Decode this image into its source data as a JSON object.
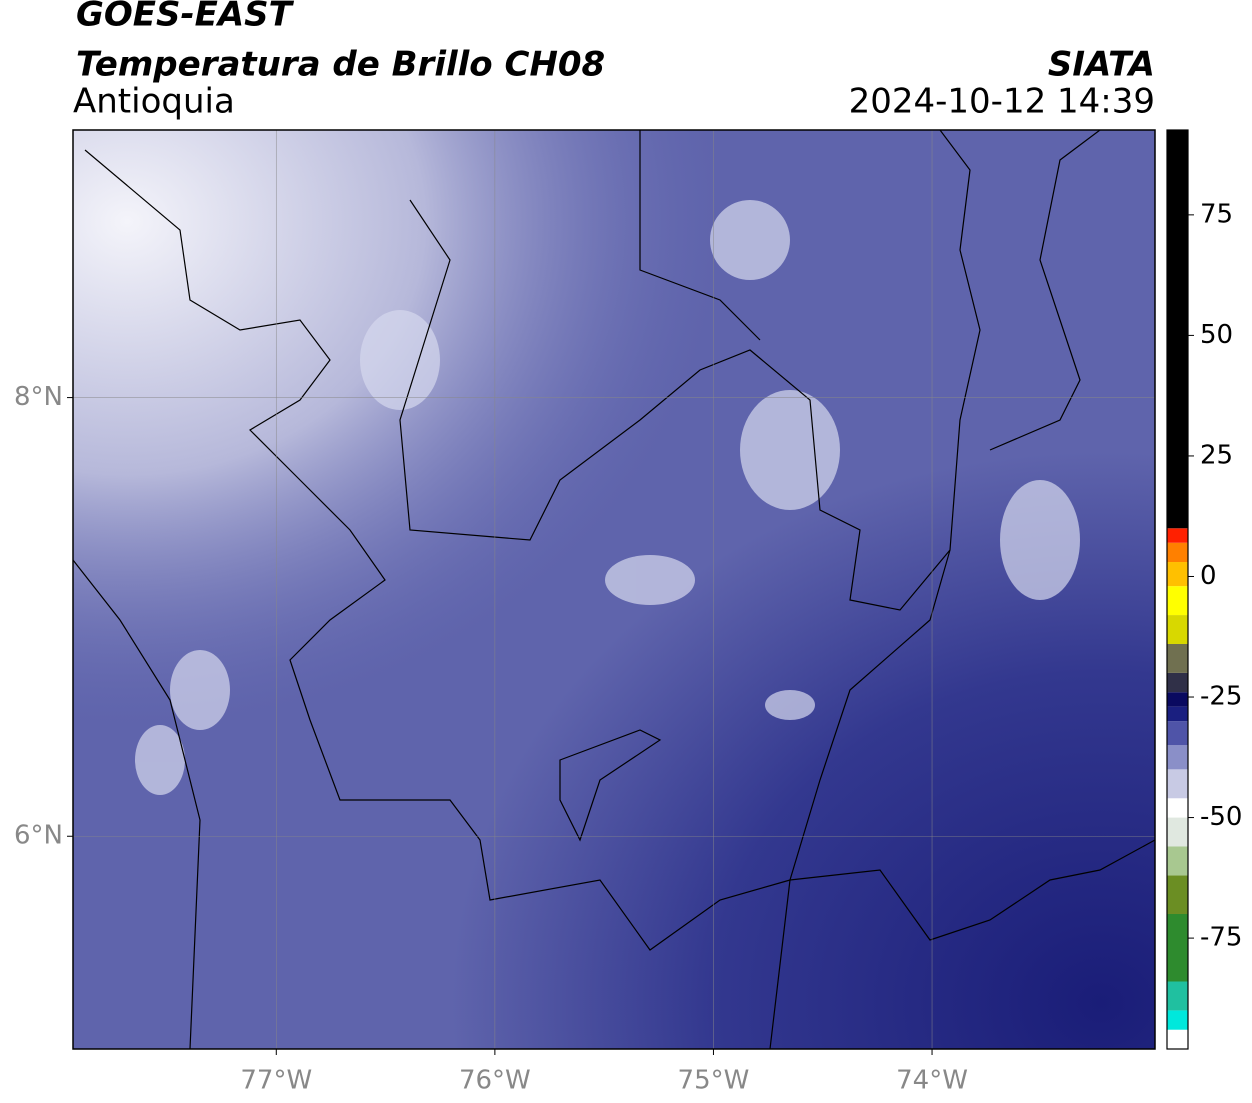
{
  "chart_data": {
    "type": "map",
    "title": "GOES-EAST",
    "subtitle": "Temperatura de Brillo CH08",
    "region": "Antioquia",
    "source": "SIATA",
    "datetime": "2024-10-12 14:39",
    "xlim": [
      -77.93,
      -72.98
    ],
    "ylim": [
      5.03,
      9.22
    ],
    "xticks": [
      {
        "value": -77,
        "label": "77°W"
      },
      {
        "value": -76,
        "label": "76°W"
      },
      {
        "value": -75,
        "label": "75°W"
      },
      {
        "value": -74,
        "label": "74°W"
      }
    ],
    "yticks": [
      {
        "value": 6,
        "label": "6°N"
      },
      {
        "value": 8,
        "label": "8°N"
      }
    ],
    "grid": true,
    "colorbar": {
      "lim": [
        -98,
        92.6
      ],
      "ticks": [
        -75,
        -50,
        -25,
        0,
        25,
        50,
        75
      ],
      "stops": [
        {
          "value": -98,
          "color": "#ffffff"
        },
        {
          "value": -94,
          "color": "#00e8dc"
        },
        {
          "value": -90,
          "color": "#20c0a0"
        },
        {
          "value": -84,
          "color": "#2e8b2e"
        },
        {
          "value": -70,
          "color": "#6b8e23"
        },
        {
          "value": -62,
          "color": "#a8c890"
        },
        {
          "value": -56,
          "color": "#e0e8e0"
        },
        {
          "value": -50,
          "color": "#ffffff"
        },
        {
          "value": -46,
          "color": "#c8cae4"
        },
        {
          "value": -40,
          "color": "#8a8fc8"
        },
        {
          "value": -35,
          "color": "#4f54a8"
        },
        {
          "value": -30,
          "color": "#1a1f80"
        },
        {
          "value": -27,
          "color": "#0a0a60"
        },
        {
          "value": -24,
          "color": "#303048"
        },
        {
          "value": -20,
          "color": "#707050"
        },
        {
          "value": -14,
          "color": "#d8d800"
        },
        {
          "value": -8,
          "color": "#ffff00"
        },
        {
          "value": -2,
          "color": "#ffc000"
        },
        {
          "value": 3,
          "color": "#ff8000"
        },
        {
          "value": 7,
          "color": "#ff2000"
        },
        {
          "value": 10,
          "color": "#000000"
        }
      ]
    }
  }
}
